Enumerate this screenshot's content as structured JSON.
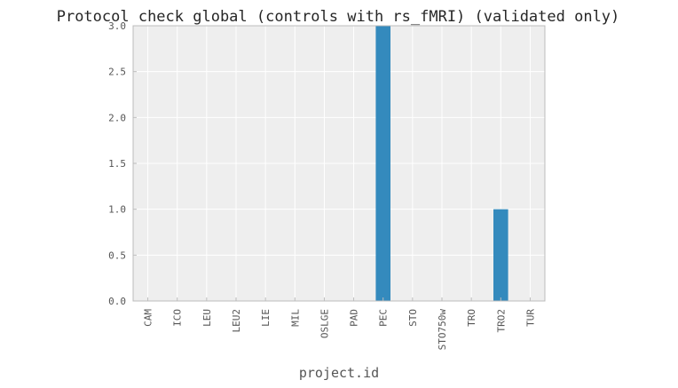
{
  "chart_data": {
    "type": "bar",
    "title": "Protocol check global (controls with rs_fMRI) (validated only)",
    "xlabel": "project.id",
    "ylabel": "",
    "categories": [
      "CAM",
      "ICO",
      "LEU",
      "LEU2",
      "LIE",
      "MIL",
      "OSLGE",
      "PAD",
      "PEC",
      "STO",
      "STO750w",
      "TRO",
      "TRO2",
      "TUR"
    ],
    "values": [
      0,
      0,
      0,
      0,
      0,
      0,
      0,
      0,
      3,
      0,
      0,
      0,
      1,
      0
    ],
    "ylim": [
      0,
      3
    ],
    "yticks": [
      "0.0",
      "0.5",
      "1.0",
      "1.5",
      "2.0",
      "2.5",
      "3.0"
    ],
    "grid": true,
    "legend": "none",
    "colors": {
      "bar": "#348ABD",
      "plot_background": "#EEEEEE",
      "grid": "#FFFFFF",
      "frame": "#BCBCBC",
      "text": "#555555",
      "title": "#262626"
    }
  }
}
